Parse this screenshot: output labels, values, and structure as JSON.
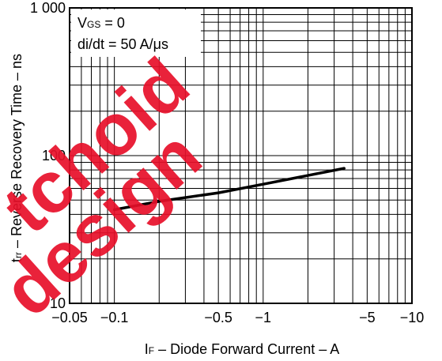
{
  "chart_data": {
    "type": "line",
    "title": "",
    "xlabel": "IF – Diode Forward Current – A",
    "xlabel_parts": {
      "symbol": "I",
      "subscript": "F",
      "text": " – Diode Forward Current – A"
    },
    "ylabel": "trr – Reverse Recovery Time – ns",
    "ylabel_parts": {
      "symbol": "t",
      "subscript": "rr",
      "text": " – Reverse Recovery Time – ns"
    },
    "x_scale": "log",
    "y_scale": "log",
    "x_magnitude_range": [
      0.05,
      10
    ],
    "ylim": [
      10,
      1000
    ],
    "x_ticks": [
      {
        "magnitude": 0.05,
        "label": "−0.05"
      },
      {
        "magnitude": 0.1,
        "label": "−0.1"
      },
      {
        "magnitude": 0.5,
        "label": "−0.5"
      },
      {
        "magnitude": 1,
        "label": "−1"
      },
      {
        "magnitude": 5,
        "label": "−5"
      },
      {
        "magnitude": 10,
        "label": "−10"
      }
    ],
    "y_ticks": [
      {
        "value": 10,
        "label": "10"
      },
      {
        "value": 100,
        "label": "100"
      },
      {
        "value": 1000,
        "label": "1 000"
      }
    ],
    "grid": true,
    "annotation": {
      "line1_symbol": "V",
      "line1_subscript": "GS",
      "line1_text": " = 0",
      "line2": "di/dt = 50 A/μs"
    },
    "series": [
      {
        "x": [
          -0.1,
          -0.2,
          -0.5,
          -1,
          -3.5
        ],
        "y": [
          43,
          49,
          56,
          64,
          82
        ]
      }
    ],
    "line_color": "#000000"
  },
  "watermark": {
    "line1": "tchoid",
    "line2": "design",
    "color": "#e8102a"
  }
}
